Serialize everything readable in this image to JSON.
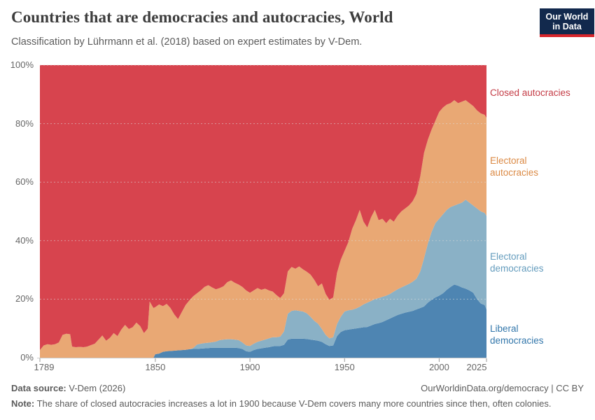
{
  "header": {
    "title": "Countries that are democracies and autocracies, World",
    "subtitle": "Classification by Lührmann et al. (2018) based on expert estimates by V-Dem."
  },
  "logo": {
    "text": "Our World\nin Data",
    "bg_color": "#12294d",
    "bar_color": "#d8262c"
  },
  "legend": {
    "items": [
      {
        "label": "Closed autocracies",
        "color": "#c43c46"
      },
      {
        "label": "Electoral\nautocracies",
        "color": "#db8a45"
      },
      {
        "label": "Electoral\ndemocracies",
        "color": "#649cbd"
      },
      {
        "label": "Liberal\ndemocracies",
        "color": "#3377ab"
      }
    ]
  },
  "footer": {
    "data_source_label": "Data source:",
    "data_source_value": " V-Dem (2026)",
    "link_text": "OurWorldinData.org/democracy | CC BY",
    "note_label": "Note:",
    "note_value": " The share of closed autocracies increases a lot in 1900 because V-Dem covers many more countries since then, often colonies."
  },
  "chart_data": {
    "type": "area",
    "stacked": true,
    "unit": "% of countries",
    "xlim": [
      1789,
      2025
    ],
    "ylim": [
      0,
      100
    ],
    "x_ticks": [
      1789,
      1850,
      1900,
      1950,
      2000,
      2025
    ],
    "y_ticks": [
      0,
      20,
      40,
      60,
      80,
      100
    ],
    "y_tick_suffix": "%",
    "grid": true,
    "legend_position": "right",
    "series": [
      {
        "name": "Liberal democracies",
        "color": "#4e85b2"
      },
      {
        "name": "Electoral democracies",
        "color": "#8ab1c6"
      },
      {
        "name": "Electoral autocracies",
        "color": "#e9a874"
      },
      {
        "name": "Closed autocracies",
        "color": "#d7444e",
        "value": "remainder_to_100"
      }
    ],
    "points_format": [
      "year",
      "liberal_democracies_pct",
      "electoral_democracies_pct",
      "electoral_autocracies_pct"
    ],
    "points": [
      [
        1789,
        0,
        0,
        2.6
      ],
      [
        1791,
        0,
        0,
        4.2
      ],
      [
        1793,
        0,
        0,
        4.6
      ],
      [
        1795,
        0,
        0,
        4.4
      ],
      [
        1797,
        0,
        0,
        4.6
      ],
      [
        1799,
        0,
        0,
        5.2
      ],
      [
        1801,
        0,
        0,
        7.8
      ],
      [
        1803,
        0,
        0,
        8.2
      ],
      [
        1805,
        0,
        0,
        8.0
      ],
      [
        1806,
        0,
        0,
        3.8
      ],
      [
        1808,
        0,
        0,
        3.6
      ],
      [
        1810,
        0,
        0,
        3.7
      ],
      [
        1812,
        0,
        0,
        3.6
      ],
      [
        1814,
        0,
        0,
        3.8
      ],
      [
        1816,
        0,
        0,
        4.3
      ],
      [
        1818,
        0,
        0,
        4.8
      ],
      [
        1820,
        0,
        0,
        6.2
      ],
      [
        1822,
        0,
        0,
        7.6
      ],
      [
        1824,
        0,
        0,
        5.8
      ],
      [
        1826,
        0,
        0,
        6.8
      ],
      [
        1828,
        0,
        0,
        8.4
      ],
      [
        1830,
        0,
        0,
        7.4
      ],
      [
        1832,
        0,
        0,
        9.6
      ],
      [
        1834,
        0,
        0,
        11.2
      ],
      [
        1836,
        0,
        0,
        9.8
      ],
      [
        1838,
        0,
        0,
        10.4
      ],
      [
        1840,
        0,
        0,
        12.0
      ],
      [
        1842,
        0,
        0,
        10.8
      ],
      [
        1844,
        0,
        0,
        8.4
      ],
      [
        1846,
        0,
        0,
        10.0
      ],
      [
        1847,
        0,
        0,
        19.2
      ],
      [
        1849,
        0,
        0,
        17.0
      ],
      [
        1850,
        1.2,
        0,
        16.1
      ],
      [
        1852,
        1.4,
        0,
        16.8
      ],
      [
        1854,
        2.0,
        0,
        15.6
      ],
      [
        1856,
        2.2,
        0,
        16.2
      ],
      [
        1858,
        2.3,
        0,
        14.7
      ],
      [
        1860,
        2.4,
        0,
        12.4
      ],
      [
        1862,
        2.5,
        0,
        10.7
      ],
      [
        1864,
        2.6,
        0,
        13.0
      ],
      [
        1866,
        2.7,
        0,
        15.3
      ],
      [
        1868,
        2.9,
        0,
        16.7
      ],
      [
        1870,
        3.0,
        0.3,
        17.7
      ],
      [
        1872,
        3.0,
        1.5,
        17.5
      ],
      [
        1874,
        3.1,
        1.7,
        18.2
      ],
      [
        1876,
        3.2,
        1.8,
        19.2
      ],
      [
        1878,
        3.3,
        1.8,
        19.7
      ],
      [
        1880,
        3.4,
        1.9,
        18.7
      ],
      [
        1882,
        3.4,
        2.1,
        17.9
      ],
      [
        1884,
        3.4,
        2.6,
        17.8
      ],
      [
        1886,
        3.4,
        2.8,
        18.2
      ],
      [
        1888,
        3.4,
        2.9,
        19.5
      ],
      [
        1890,
        3.4,
        2.9,
        20.1
      ],
      [
        1892,
        3.4,
        2.8,
        19.4
      ],
      [
        1894,
        3.3,
        2.7,
        19.0
      ],
      [
        1896,
        3.0,
        2.2,
        19.0
      ],
      [
        1898,
        2.2,
        2.0,
        18.8
      ],
      [
        1900,
        2.0,
        2.0,
        18.2
      ],
      [
        1902,
        2.6,
        2.2,
        18.2
      ],
      [
        1904,
        3.0,
        2.4,
        18.4
      ],
      [
        1906,
        3.2,
        2.6,
        17.4
      ],
      [
        1908,
        3.4,
        2.8,
        17.4
      ],
      [
        1910,
        3.6,
        3.0,
        16.4
      ],
      [
        1912,
        3.9,
        3.1,
        15.6
      ],
      [
        1914,
        4.0,
        3.0,
        14.4
      ],
      [
        1916,
        4.0,
        3.2,
        13.2
      ],
      [
        1918,
        4.4,
        4.6,
        13.0
      ],
      [
        1920,
        6.2,
        8.8,
        14.5
      ],
      [
        1922,
        6.5,
        9.5,
        15.0
      ],
      [
        1924,
        6.5,
        9.7,
        14.2
      ],
      [
        1926,
        6.5,
        9.5,
        15.2
      ],
      [
        1928,
        6.5,
        9.3,
        14.4
      ],
      [
        1930,
        6.4,
        8.8,
        14.2
      ],
      [
        1932,
        6.2,
        7.8,
        14.4
      ],
      [
        1934,
        6.0,
        6.6,
        14.0
      ],
      [
        1936,
        5.8,
        5.8,
        12.8
      ],
      [
        1938,
        5.4,
        4.4,
        15.6
      ],
      [
        1940,
        4.6,
        3.2,
        14.0
      ],
      [
        1942,
        4.0,
        2.6,
        13.2
      ],
      [
        1944,
        4.2,
        2.8,
        13.6
      ],
      [
        1946,
        7.4,
        4.1,
        17.5
      ],
      [
        1948,
        8.8,
        5.2,
        19.5
      ],
      [
        1950,
        9.4,
        6.4,
        20.7
      ],
      [
        1952,
        9.6,
        6.6,
        23.3
      ],
      [
        1954,
        9.8,
        6.6,
        27.6
      ],
      [
        1956,
        10.0,
        6.8,
        30.2
      ],
      [
        1958,
        10.2,
        7.2,
        33.1
      ],
      [
        1960,
        10.4,
        7.8,
        28.3
      ],
      [
        1962,
        10.5,
        8.3,
        25.7
      ],
      [
        1964,
        11.0,
        8.4,
        28.6
      ],
      [
        1966,
        11.5,
        8.5,
        30.5
      ],
      [
        1968,
        11.8,
        8.6,
        26.6
      ],
      [
        1970,
        12.2,
        8.6,
        26.7
      ],
      [
        1972,
        12.8,
        8.4,
        24.8
      ],
      [
        1974,
        13.4,
        8.4,
        25.7
      ],
      [
        1976,
        14.0,
        8.6,
        23.9
      ],
      [
        1978,
        14.6,
        8.8,
        25.1
      ],
      [
        1980,
        15.0,
        9.0,
        26.0
      ],
      [
        1982,
        15.4,
        9.2,
        26.4
      ],
      [
        1984,
        15.7,
        9.5,
        26.8
      ],
      [
        1986,
        16.0,
        10.0,
        27.5
      ],
      [
        1988,
        16.5,
        10.5,
        29.0
      ],
      [
        1990,
        17.0,
        12.5,
        32.5
      ],
      [
        1992,
        17.5,
        16.5,
        36.0
      ],
      [
        1994,
        18.8,
        20.2,
        35.5
      ],
      [
        1996,
        19.8,
        23.2,
        35.0
      ],
      [
        1998,
        20.6,
        25.4,
        35.0
      ],
      [
        2000,
        21.2,
        26.3,
        36.5
      ],
      [
        2002,
        22.0,
        27.0,
        36.5
      ],
      [
        2004,
        23.2,
        27.3,
        36.0
      ],
      [
        2006,
        24.2,
        27.3,
        35.5
      ],
      [
        2008,
        25.0,
        27.0,
        36.0
      ],
      [
        2010,
        24.6,
        27.9,
        34.5
      ],
      [
        2012,
        24.0,
        29.0,
        34.5
      ],
      [
        2014,
        23.6,
        30.4,
        34.0
      ],
      [
        2016,
        23.0,
        30.0,
        34.0
      ],
      [
        2018,
        22.2,
        29.8,
        34.0
      ],
      [
        2020,
        20.0,
        31.0,
        33.5
      ],
      [
        2022,
        18.5,
        31.5,
        33.5
      ],
      [
        2024,
        18.0,
        31.5,
        33.5
      ],
      [
        2025,
        16.5,
        32.0,
        33.5
      ]
    ]
  }
}
